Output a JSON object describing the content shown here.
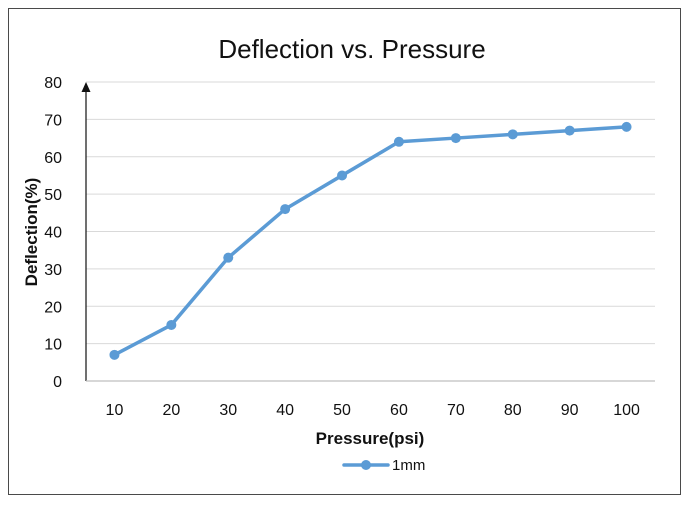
{
  "chart_data": {
    "type": "line",
    "title": "Deflection vs. Pressure",
    "xlabel": "Pressure(psi)",
    "ylabel": "Deflection(%)",
    "categories": [
      "10",
      "20",
      "30",
      "40",
      "50",
      "60",
      "70",
      "80",
      "90",
      "100"
    ],
    "series": [
      {
        "name": "1mm",
        "color": "#5b9bd5",
        "values": [
          7,
          15,
          33,
          46,
          55,
          64,
          65,
          66,
          67,
          68
        ]
      }
    ],
    "yticks": [
      "0",
      "10",
      "20",
      "30",
      "40",
      "50",
      "60",
      "70",
      "80"
    ],
    "ylim": [
      0,
      80
    ],
    "grid": true,
    "legend": "bottom"
  }
}
